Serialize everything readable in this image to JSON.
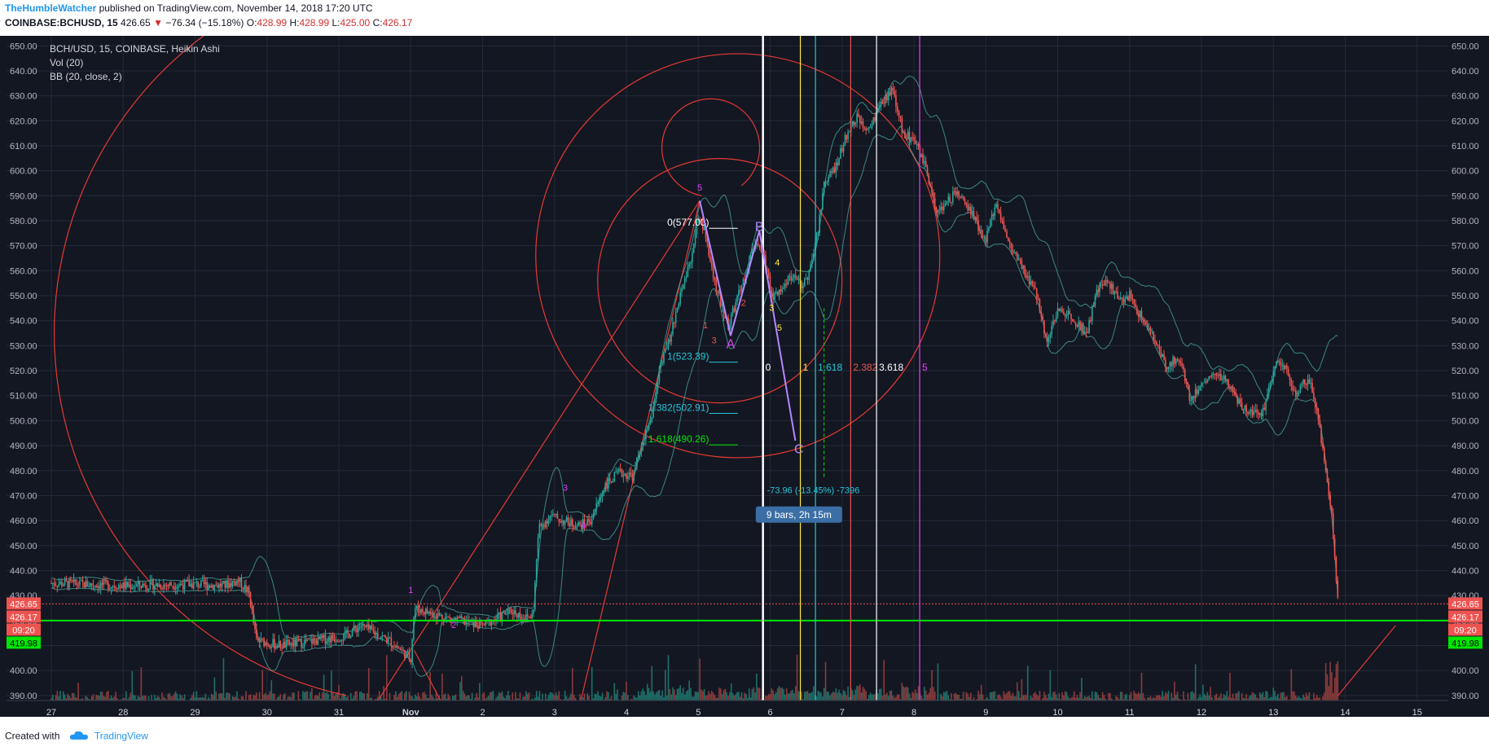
{
  "header": {
    "author": "TheHumbleWatcher",
    "published": " published on TradingView.com, November 14, 2018 17:20 UTC",
    "symbol": "COINBASE:BCHUSD, 15",
    "last": "426.65",
    "change": "−76.34 (−15.18%)",
    "o_label": "O:",
    "o": "428.99",
    "h_label": "H:",
    "h": "428.99",
    "l_label": "L:",
    "l": "425.00",
    "c_label": "C:",
    "c": "426.17"
  },
  "legend": {
    "line1": "BCH/USD, 15, COINBASE, Heikin Ashi",
    "line2": "Vol (20)",
    "line3": "BB (20, close, 2)"
  },
  "footer": {
    "created_with": "Created with",
    "brand": "TradingView"
  },
  "colors": {
    "background": "#131722",
    "grid": "#242a39",
    "axis_text": "#b2b5be",
    "up": "#26a69a",
    "down": "#ef5350",
    "bb": "#4db6ac",
    "spiral": "#e53935",
    "hline": "#00e600",
    "brand": "#2196f3"
  },
  "chart_data": {
    "type": "candlestick",
    "ylim": [
      388,
      654
    ],
    "price_scale": [
      "650.00",
      "640.00",
      "630.00",
      "620.00",
      "610.00",
      "600.00",
      "590.00",
      "580.00",
      "570.00",
      "560.00",
      "550.00",
      "540.00",
      "530.00",
      "520.00",
      "510.00",
      "500.00",
      "490.00",
      "480.00",
      "470.00",
      "460.00",
      "450.00",
      "440.00",
      "430.00",
      "420.00",
      "410.00",
      "400.00",
      "390.00"
    ],
    "x_axis": [
      "27",
      "28",
      "29",
      "30",
      "31",
      "Nov",
      "2",
      "3",
      "4",
      "5",
      "6",
      "7",
      "8",
      "9",
      "10",
      "11",
      "12",
      "13",
      "14",
      "15"
    ],
    "price_path": [
      [
        0,
        435
      ],
      [
        1,
        434
      ],
      [
        2,
        434.5
      ],
      [
        2.4,
        434
      ],
      [
        2.6,
        436
      ],
      [
        2.75,
        431
      ],
      [
        2.85,
        412
      ],
      [
        3.2,
        410
      ],
      [
        3.7,
        412
      ],
      [
        4.1,
        414
      ],
      [
        4.3,
        418
      ],
      [
        4.7,
        412
      ],
      [
        5,
        405
      ],
      [
        5.05,
        425
      ],
      [
        5.5,
        421
      ],
      [
        6,
        418
      ],
      [
        6.4,
        424
      ],
      [
        6.6,
        421
      ],
      [
        6.7,
        422
      ],
      [
        6.78,
        457
      ],
      [
        6.95,
        462
      ],
      [
        7.1,
        460
      ],
      [
        7.35,
        458
      ],
      [
        7.5,
        460
      ],
      [
        7.7,
        474
      ],
      [
        7.9,
        479
      ],
      [
        8.1,
        478
      ],
      [
        8.2,
        490
      ],
      [
        8.35,
        500
      ],
      [
        8.45,
        520
      ],
      [
        8.6,
        532
      ],
      [
        8.75,
        550
      ],
      [
        8.9,
        565
      ],
      [
        9.0,
        582
      ],
      [
        9.1,
        575
      ],
      [
        9.2,
        558
      ],
      [
        9.3,
        548
      ],
      [
        9.42,
        538
      ],
      [
        9.5,
        545
      ],
      [
        9.65,
        558
      ],
      [
        9.8,
        572
      ],
      [
        9.9,
        568
      ],
      [
        9.98,
        556
      ],
      [
        10.05,
        549
      ],
      [
        10.15,
        553
      ],
      [
        10.3,
        558
      ],
      [
        10.45,
        553
      ],
      [
        10.55,
        560
      ],
      [
        10.65,
        573
      ],
      [
        10.75,
        595
      ],
      [
        10.9,
        601
      ],
      [
        11.05,
        613
      ],
      [
        11.2,
        622
      ],
      [
        11.35,
        615
      ],
      [
        11.5,
        624
      ],
      [
        11.7,
        633
      ],
      [
        11.85,
        615
      ],
      [
        12.0,
        612
      ],
      [
        12.15,
        602
      ],
      [
        12.3,
        584
      ],
      [
        12.45,
        587
      ],
      [
        12.6,
        592
      ],
      [
        12.8,
        583
      ],
      [
        13.0,
        572
      ],
      [
        13.15,
        588
      ],
      [
        13.3,
        572
      ],
      [
        13.5,
        561
      ],
      [
        13.7,
        551
      ],
      [
        13.85,
        532
      ],
      [
        14.0,
        544
      ],
      [
        14.2,
        542
      ],
      [
        14.4,
        535
      ],
      [
        14.55,
        552
      ],
      [
        14.7,
        556
      ],
      [
        14.85,
        548
      ],
      [
        15.0,
        550
      ],
      [
        15.15,
        542
      ],
      [
        15.3,
        535
      ],
      [
        15.5,
        522
      ],
      [
        15.7,
        525
      ],
      [
        15.85,
        508
      ],
      [
        16.0,
        515
      ],
      [
        16.2,
        519
      ],
      [
        16.4,
        514
      ],
      [
        16.55,
        505
      ],
      [
        16.75,
        504
      ],
      [
        16.85,
        503
      ],
      [
        17.05,
        526
      ],
      [
        17.2,
        519
      ],
      [
        17.3,
        510
      ],
      [
        17.45,
        516
      ],
      [
        17.55,
        512
      ],
      [
        17.72,
        483
      ],
      [
        17.82,
        460
      ],
      [
        17.9,
        426
      ]
    ],
    "bb_width_avg": 7,
    "volume_level": "low with spikes",
    "current_price_label": "426.65",
    "close_label": "426.17",
    "countdown_label": "09:20",
    "support_label": "419.98",
    "support_level": 419.98
  },
  "annotations": {
    "wave_labels": [
      {
        "text": "1",
        "t": 5.0,
        "p": 431,
        "color": "#e040fb"
      },
      {
        "text": "2",
        "t": 5.6,
        "p": 417,
        "color": "#e040fb"
      },
      {
        "text": "3",
        "t": 7.15,
        "p": 472,
        "color": "#e040fb"
      },
      {
        "text": "4",
        "t": 7.4,
        "p": 457,
        "color": "#e040fb"
      },
      {
        "text": "5",
        "t": 9.02,
        "p": 592,
        "color": "#e040fb"
      },
      {
        "text": "1",
        "t": 9.1,
        "p": 537,
        "color": "#ef5350"
      },
      {
        "text": "3",
        "t": 9.22,
        "p": 531,
        "color": "#ef5350"
      },
      {
        "text": "2",
        "t": 9.63,
        "p": 546,
        "color": "#ef5350"
      },
      {
        "text": "A",
        "t": 9.45,
        "p": 529,
        "color": "#e040fb"
      },
      {
        "text": "B",
        "t": 9.85,
        "p": 576,
        "color": "#b388ff"
      },
      {
        "text": "C",
        "t": 10.4,
        "p": 487,
        "color": "#b388ff"
      },
      {
        "text": "4",
        "t": 10.1,
        "p": 562,
        "color": "#ffeb3b"
      },
      {
        "text": "3",
        "t": 10.02,
        "p": 544,
        "color": "#ffeb3b"
      },
      {
        "text": "5",
        "t": 10.13,
        "p": 536,
        "color": "#ffeb3b"
      }
    ],
    "fib_labels": [
      {
        "text": "0(577.00)",
        "t": 9.22,
        "p": 577,
        "color": "#ffffff"
      },
      {
        "text": "1(523.39)",
        "t": 9.22,
        "p": 523.4,
        "color": "#26c6da"
      },
      {
        "text": "1.382(502.91)",
        "t": 9.22,
        "p": 502.9,
        "color": "#26c6da"
      },
      {
        "text": "1.618(490.26)",
        "t": 9.22,
        "p": 490.3,
        "color": "#00e600"
      }
    ],
    "time_fib": [
      {
        "t": 9.9,
        "color": "#ffffff",
        "label": "0"
      },
      {
        "t": 10.42,
        "color": "#ffeb3b",
        "label": "1"
      },
      {
        "t": 10.63,
        "color": "#26c6da",
        "label": "1.618"
      },
      {
        "t": 11.12,
        "color": "#ef5350",
        "label": "2.382"
      },
      {
        "t": 11.48,
        "color": "#ffffff",
        "label": "3.618"
      },
      {
        "t": 12.08,
        "color": "#e040fb",
        "label": "5"
      }
    ],
    "measure_text": "-73.96 (-13.45%) -7396",
    "measure_box": "9 bars, 2h 15m"
  }
}
